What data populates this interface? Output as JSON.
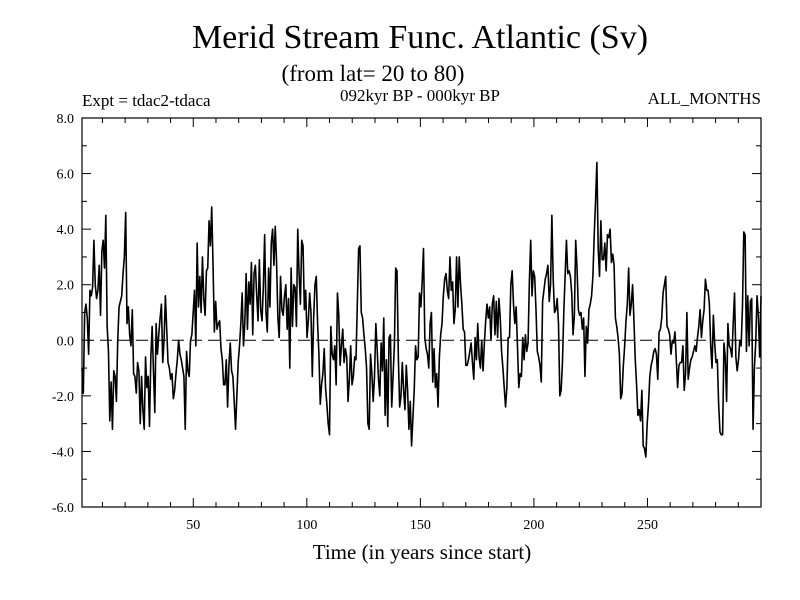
{
  "chart_data": {
    "type": "line",
    "title": "Merid Stream Func. Atlantic (Sv)",
    "subtitle": "(from lat= 20 to 80)",
    "expt_label": "Expt = tdac2-tdaca",
    "period_label": "092kyr BP - 000kyr BP",
    "months_label": "ALL_MONTHS",
    "xlabel": "Time (in years since start)",
    "ylabel": "",
    "xlim": [
      1,
      300
    ],
    "ylim": [
      -6,
      8
    ],
    "x_ticks": [
      50,
      100,
      150,
      200,
      250
    ],
    "x_tick_labels": [
      "50",
      "100",
      "150",
      "200",
      "250"
    ],
    "y_ticks": [
      -6,
      -4,
      -2,
      0,
      2,
      4,
      6,
      8
    ],
    "y_tick_labels": [
      "-6.0",
      "-4.0",
      "-2.0",
      "0.0",
      "2.0",
      "4.0",
      "6.0",
      "8.0"
    ],
    "zero_line": {
      "value": 0,
      "style": "dashed"
    },
    "series": [
      {
        "name": "Merid Stream Func. Atlantic",
        "color": "#000000",
        "values": [
          -1.0,
          -1.9,
          1.0,
          1.3,
          0.8,
          -0.5,
          1.8,
          1.6,
          1.9,
          3.6,
          2.0,
          1.5,
          1.8,
          2.7,
          0.9,
          3.2,
          3.6,
          2.6,
          4.5,
          0.5,
          -0.4,
          -2.9,
          -1.5,
          -3.2,
          -1.1,
          -1.3,
          -2.2,
          0.0,
          1.2,
          1.4,
          1.6,
          2.4,
          3.0,
          4.6,
          0.6,
          1.2,
          0.2,
          -0.2,
          1.1,
          -1.2,
          -1.3,
          -1.9,
          -0.8,
          -1.1,
          -3.0,
          -1.3,
          -2.5,
          -3.2,
          -0.6,
          -1.7,
          -1.3,
          -3.1,
          -0.6,
          0.5,
          -1.1,
          -2.6,
          0.6,
          -0.5,
          0.2,
          0.8,
          1.3,
          -0.8,
          0.0,
          1.6,
          0.4,
          -0.8,
          -1.0,
          -1.4,
          -1.2,
          -2.1,
          -1.8,
          -1.2,
          -0.7,
          0.0,
          -0.5,
          -0.7,
          -1.0,
          -1.3,
          -3.2,
          -0.4,
          -1.1,
          -1.3,
          0.0,
          0.2,
          1.0,
          1.8,
          -0.2,
          3.5,
          1.2,
          2.3,
          1.0,
          3.0,
          1.5,
          0.9,
          2.5,
          2.6,
          4.3,
          3.4,
          4.8,
          2.7,
          0.3,
          1.4,
          0.4,
          0.6,
          0.7,
          -0.3,
          -0.7,
          -1.6,
          -1.6,
          -0.7,
          -2.4,
          -0.9,
          -0.1,
          -1.1,
          -1.3,
          -2.2,
          -3.2,
          -2.0,
          -0.8,
          -0.2,
          0.6,
          1.7,
          -0.2,
          0.6,
          2.4,
          0.4,
          2.1,
          1.3,
          2.8,
          0.2,
          2.4,
          2.7,
          1.6,
          0.7,
          2.9,
          1.1,
          0.7,
          1.9,
          3.8,
          1.0,
          0.3,
          2.6,
          1.2,
          3.5,
          4.0,
          2.7,
          4.1,
          2.8,
          0.8,
          0.1,
          2.3,
          1.1,
          0.9,
          1.6,
          2.0,
          0.4,
          1.5,
          -1.0,
          2.6,
          0.5,
          2.0,
          1.9,
          0.5,
          4.0,
          2.4,
          1.3,
          3.6,
          3.4,
          1.1,
          1.8,
          0.1,
          0.7,
          1.7,
          1.0,
          -1.3,
          0.8,
          2.0,
          2.3,
          0.6,
          -0.5,
          -2.3,
          -1.6,
          -1.2,
          -0.3,
          -1.7,
          -2.3,
          -3.0,
          -3.4,
          0.5,
          -0.5,
          -0.7,
          -0.2,
          -1.6,
          1.7,
          0.9,
          -0.9,
          -0.2,
          0.4,
          -0.8,
          -0.3,
          -0.6,
          -2.2,
          -1.4,
          -0.2,
          -1.6,
          -1.3,
          -0.6,
          -0.7,
          1.3,
          3.3,
          3.4,
          1.0,
          0.8,
          0.2,
          -0.3,
          -1.0,
          -3.0,
          -3.2,
          -0.5,
          -1.2,
          -2.2,
          -1.3,
          0.6,
          -0.3,
          -1.4,
          -2.0,
          -0.1,
          -1.1,
          0.8,
          -2.7,
          -0.7,
          -3.1,
          0.1,
          0.2,
          -2.4,
          -1.3,
          -0.2,
          2.6,
          2.5,
          -0.6,
          -2.4,
          -2.0,
          -0.8,
          -1.8,
          -2.5,
          -0.9,
          -1.8,
          -3.2,
          -2.2,
          -3.8,
          -2.8,
          -1.8,
          -0.2,
          -0.7,
          -0.6,
          1.7,
          1.2,
          2.1,
          3.3,
          0.1,
          -0.3,
          -0.5,
          -1.0,
          0.6,
          1.0,
          -1.5,
          -0.3,
          -1.7,
          -1.2,
          -2.4,
          -0.6,
          0.2,
          0.6,
          1.6,
          2.2,
          2.4,
          1.8,
          1.5,
          3.0,
          1.8,
          2.1,
          0.6,
          1.1,
          3.0,
          1.2,
          3.0,
          2.0,
          1.3,
          0.4,
          0.3,
          -0.9,
          -0.9,
          -0.7,
          -0.4,
          -0.1,
          -0.8,
          -1.4,
          0.1,
          -0.7,
          0.6,
          -0.6,
          -1.0,
          0.0,
          -1.1,
          -0.1,
          0.7,
          1.3,
          0.8,
          1.2,
          0.0,
          1.3,
          1.6,
          0.2,
          1.4,
          0.1,
          1.5,
          0.8,
          -0.4,
          -1.0,
          -1.7,
          -2.4,
          -1.7,
          0.1,
          0.1,
          2.0,
          2.5,
          1.3,
          0.6,
          1.2,
          -0.2,
          -1.7,
          -1.2,
          -1.3,
          0.1,
          -0.7,
          0.2,
          -0.4,
          -0.1,
          2.1,
          3.6,
          1.6,
          2.5,
          2.3,
          1.1,
          -0.4,
          -0.6,
          -0.9,
          -1.5,
          1.4,
          1.8,
          2.2,
          2.4,
          2.7,
          1.4,
          2.0,
          4.5,
          2.2,
          1.0,
          1.1,
          1.5,
          0.6,
          -2.0,
          -1.8,
          -0.8,
          1.0,
          2.3,
          3.6,
          2.4,
          2.5,
          2.3,
          1.7,
          0.2,
          0.9,
          3.6,
          2.6,
          1.1,
          0.9,
          1.0,
          0.4,
          0.8,
          -1.3,
          0.5,
          -0.1,
          1.1,
          1.3,
          1.6,
          2.3,
          3.8,
          5.0,
          6.4,
          3.3,
          2.3,
          4.3,
          2.9,
          2.9,
          3.5,
          2.5,
          3.8,
          3.7,
          4.0,
          2.8,
          3.1,
          2.7,
          0.8,
          0.5,
          0.1,
          -0.5,
          -2.1,
          -1.9,
          -0.9,
          -0.2,
          0.7,
          1.3,
          2.6,
          0.9,
          1.3,
          2.0,
          0.7,
          -0.7,
          -1.6,
          -2.7,
          -2.5,
          -2.9,
          -1.8,
          -3.8,
          -3.9,
          -4.2,
          -3.0,
          -2.3,
          -1.3,
          -0.9,
          -0.7,
          -0.4,
          -0.3,
          -0.5,
          -1.4,
          0.3,
          0.4,
          0.8,
          1.7,
          2.0,
          2.3,
          0.5,
          0.4,
          0.2,
          -0.5,
          0.0,
          -0.1,
          0.3,
          -0.7,
          -1.7,
          -0.9,
          -0.8,
          -0.8,
          -0.2,
          -1.8,
          -1.2,
          1.0,
          -1.4,
          -1.0,
          -0.7,
          -0.6,
          -0.4,
          -0.2,
          -0.4,
          0.1,
          0.5,
          1.1,
          0.1,
          0.7,
          1.1,
          2.2,
          1.8,
          1.8,
          1.3,
          -0.2,
          -1.0,
          0.9,
          -0.1,
          -0.8,
          -0.7,
          -2.3,
          -3.3,
          -3.4,
          -3.4,
          -0.1,
          -0.6,
          -2.2,
          0.6,
          -0.2,
          -0.3,
          -0.6,
          0.6,
          1.7,
          -0.6,
          -1.1,
          -0.7,
          0.0,
          -0.2,
          1.2,
          3.9,
          3.8,
          -0.4,
          1.6,
          -0.2,
          1.4,
          1.5,
          -3.2,
          -1.0,
          -0.1,
          1.6,
          0.9,
          -0.6,
          1.6
        ]
      }
    ]
  }
}
